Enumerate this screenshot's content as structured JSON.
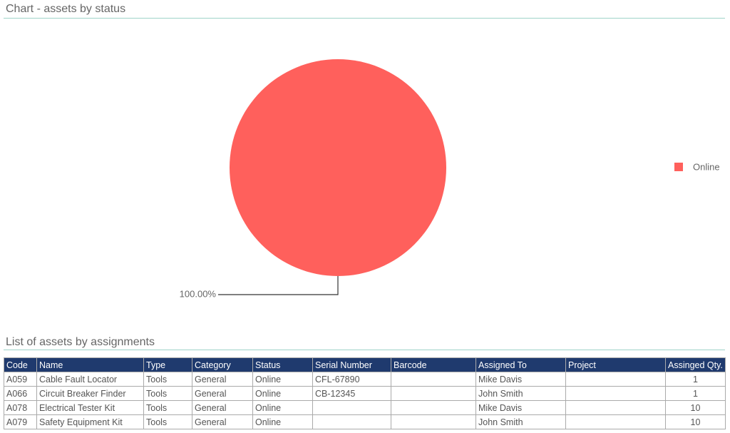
{
  "chart_section_title": "Chart - assets by status",
  "chart_data": {
    "type": "pie",
    "categories": [
      "Online"
    ],
    "values": [
      100
    ],
    "value_labels": [
      "100.00%"
    ],
    "colors": [
      "#ff605c"
    ],
    "legend": "right"
  },
  "table": {
    "title": "List of assets by assignments",
    "columns": [
      "Code",
      "Name",
      "Type",
      "Category",
      "Status",
      "Serial Number",
      "Barcode",
      "Assigned To",
      "Project",
      "Assinged Qty."
    ],
    "rows": [
      [
        "A059",
        "Cable Fault Locator",
        "Tools",
        "General",
        "Online",
        "CFL-67890",
        null,
        "Mike Davis",
        null,
        1
      ],
      [
        "A066",
        "Circuit Breaker Finder",
        "Tools",
        "General",
        "Online",
        "CB-12345",
        null,
        "John Smith",
        null,
        1
      ],
      [
        "A078",
        "Electrical Tester Kit",
        "Tools",
        "General",
        "Online",
        null,
        null,
        "Mike Davis",
        null,
        10
      ],
      [
        "A079",
        "Safety Equipment Kit",
        "Tools",
        "General",
        "Online",
        null,
        null,
        "John Smith",
        null,
        10
      ]
    ]
  }
}
